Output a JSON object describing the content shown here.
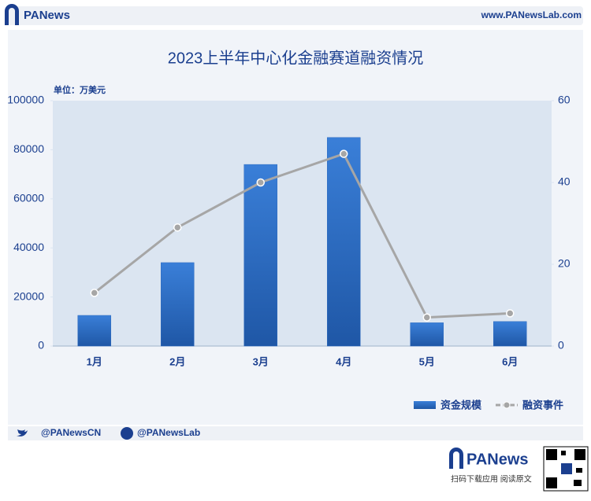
{
  "header": {
    "brand": "PANews",
    "url": "www.PANewsLab.com"
  },
  "chart_data": {
    "type": "bar",
    "title": "2023上半年中心化金融赛道融资情况",
    "unit_label": "单位：万美元",
    "categories": [
      "1月",
      "2月",
      "3月",
      "4月",
      "5月",
      "6月"
    ],
    "series": [
      {
        "name": "资金规模",
        "type": "bar",
        "color": "#2f6cc0",
        "values": [
          12500,
          34000,
          74000,
          85000,
          9500,
          10000
        ]
      },
      {
        "name": "融资事件",
        "type": "line",
        "axis": "y2",
        "color": "#a6a6a6",
        "values": [
          13,
          29,
          40,
          47,
          7,
          8
        ]
      }
    ],
    "ylim": [
      0,
      100000
    ],
    "yticks": [
      0,
      20000,
      40000,
      60000,
      80000,
      100000
    ],
    "y2lim": [
      0,
      60
    ],
    "y2ticks": [
      0,
      20,
      40,
      60
    ],
    "grid": false,
    "legend": "bottom-right"
  },
  "footer": {
    "twitter": "@PANewsCN",
    "facebook": "@PANewsLab",
    "brand": "PANews",
    "cta": "扫码下载应用  阅读原文"
  }
}
